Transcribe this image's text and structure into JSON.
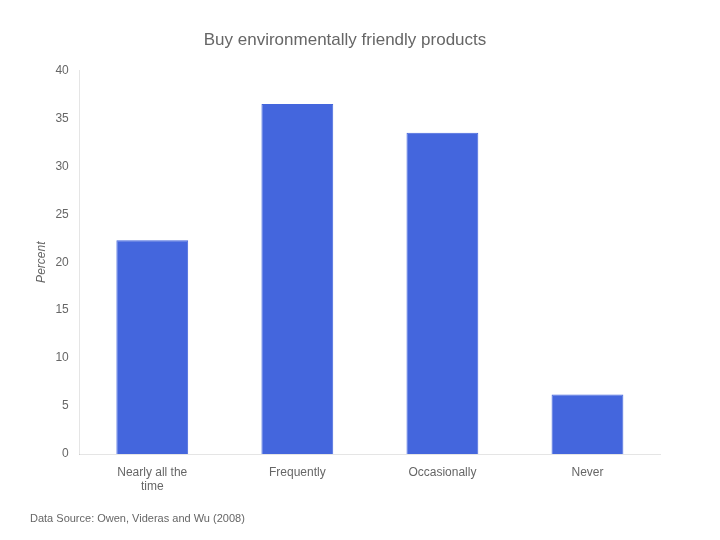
{
  "chart_data": {
    "type": "bar",
    "title": "Buy environmentally friendly products",
    "categories": [
      "Nearly all the\ntime",
      "Frequently",
      "Occasionally",
      "Never"
    ],
    "values": [
      22.3,
      36.5,
      33.5,
      6.2
    ],
    "color": "#4466dd",
    "ylabel": "Percent",
    "ylim": [
      0,
      40
    ],
    "yticks": [
      0,
      5,
      10,
      15,
      20,
      25,
      30,
      35,
      40
    ],
    "grid": false,
    "annotations": [
      "Data Source: Owen, Videras and Wu (2008)"
    ]
  }
}
